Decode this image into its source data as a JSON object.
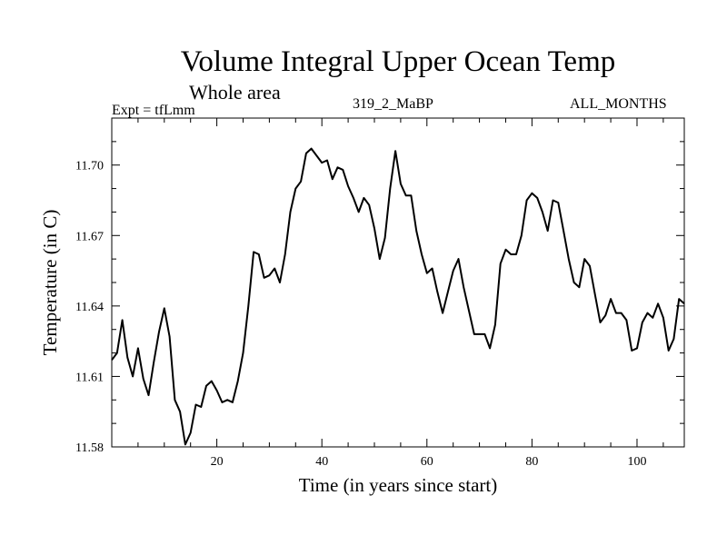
{
  "chart_data": {
    "type": "line",
    "title": "Volume Integral Upper Ocean Temp",
    "subtitle": "Whole area",
    "annotations": {
      "left": "Expt = tfLmm",
      "center": "319_2_MaBP",
      "right": "ALL_MONTHS"
    },
    "xlabel": "Time (in years since start)",
    "ylabel": "Temperature (in C)",
    "xlim": [
      0,
      109
    ],
    "ylim": [
      11.58,
      11.72
    ],
    "xticks": [
      20,
      40,
      60,
      80,
      100
    ],
    "yticks": [
      11.58,
      11.61,
      11.64,
      11.67,
      11.7
    ],
    "ytick_labels": [
      "11.58",
      "11.61",
      "11.64",
      "11.67",
      "11.70"
    ],
    "series": [
      {
        "name": "Volume Integral Upper Ocean Temp",
        "color": "#000000",
        "x": [
          0,
          1,
          2,
          3,
          4,
          5,
          6,
          7,
          8,
          9,
          10,
          11,
          12,
          13,
          14,
          15,
          16,
          17,
          18,
          19,
          20,
          21,
          22,
          23,
          24,
          25,
          26,
          27,
          28,
          29,
          30,
          31,
          32,
          33,
          34,
          35,
          36,
          37,
          38,
          39,
          40,
          41,
          42,
          43,
          44,
          45,
          46,
          47,
          48,
          49,
          50,
          51,
          52,
          53,
          54,
          55,
          56,
          57,
          58,
          59,
          60,
          61,
          62,
          63,
          64,
          65,
          66,
          67,
          68,
          69,
          70,
          71,
          72,
          73,
          74,
          75,
          76,
          77,
          78,
          79,
          80,
          81,
          82,
          83,
          84,
          85,
          86,
          87,
          88,
          89,
          90,
          91,
          92,
          93,
          94,
          95,
          96,
          97,
          98,
          99,
          100,
          101,
          102,
          103,
          104,
          105,
          106,
          107,
          108,
          109
        ],
        "values": [
          11.617,
          11.62,
          11.634,
          11.618,
          11.61,
          11.622,
          11.609,
          11.602,
          11.616,
          11.629,
          11.639,
          11.627,
          11.6,
          11.595,
          11.581,
          11.586,
          11.598,
          11.597,
          11.606,
          11.608,
          11.604,
          11.599,
          11.6,
          11.599,
          11.608,
          11.62,
          11.64,
          11.663,
          11.662,
          11.652,
          11.653,
          11.656,
          11.65,
          11.662,
          11.68,
          11.69,
          11.693,
          11.705,
          11.707,
          11.704,
          11.701,
          11.702,
          11.694,
          11.699,
          11.698,
          11.691,
          11.686,
          11.68,
          11.686,
          11.683,
          11.673,
          11.66,
          11.669,
          11.69,
          11.706,
          11.692,
          11.687,
          11.687,
          11.672,
          11.662,
          11.654,
          11.656,
          11.646,
          11.637,
          11.646,
          11.655,
          11.66,
          11.648,
          11.638,
          11.628,
          11.628,
          11.628,
          11.622,
          11.632,
          11.658,
          11.664,
          11.662,
          11.662,
          11.67,
          11.685,
          11.688,
          11.686,
          11.68,
          11.672,
          11.685,
          11.684,
          11.672,
          11.66,
          11.65,
          11.648,
          11.66,
          11.657,
          11.645,
          11.633,
          11.636,
          11.643,
          11.637,
          11.637,
          11.634,
          11.621,
          11.622,
          11.633,
          11.637,
          11.635,
          11.641,
          11.635,
          11.621,
          11.626,
          11.643,
          11.641
        ]
      }
    ]
  }
}
